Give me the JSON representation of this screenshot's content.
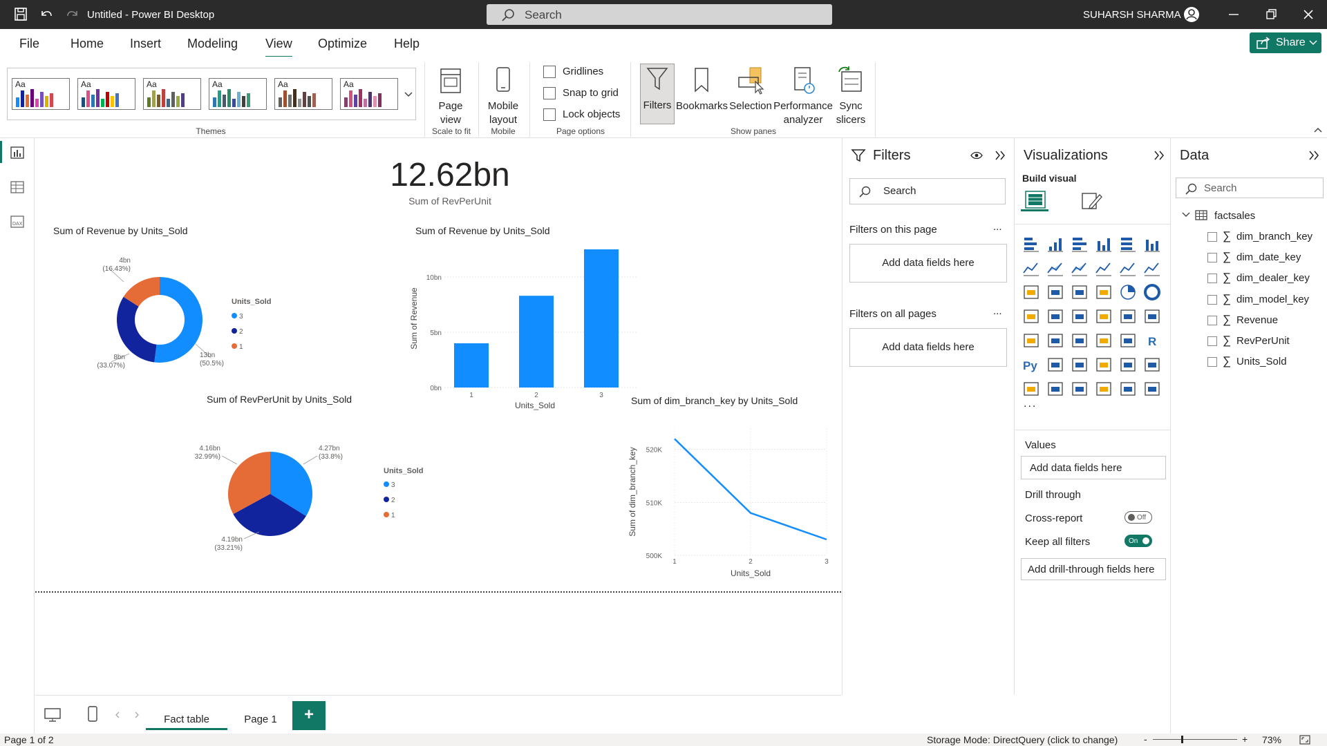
{
  "titlebar": {
    "title": "Untitled - Power BI Desktop",
    "search_placeholder": "Search",
    "user": "SUHARSH SHARMA"
  },
  "menu": {
    "items": [
      "File",
      "Home",
      "Insert",
      "Modeling",
      "View",
      "Optimize",
      "Help"
    ],
    "active": "View",
    "share": "Share"
  },
  "ribbon": {
    "themes_label": "Themes",
    "theme_tile_text": "Aa",
    "page_view": "Page view",
    "scale_label": "Scale to fit",
    "mobile_layout": "Mobile layout",
    "mobile_label": "Mobile",
    "gridlines": "Gridlines",
    "snap": "Snap to grid",
    "lock": "Lock objects",
    "page_options_label": "Page options",
    "filters": "Filters",
    "bookmarks": "Bookmarks",
    "selection": "Selection",
    "performance": "Performance analyzer",
    "sync": "Sync slicers",
    "show_panes_label": "Show panes",
    "theme_colors": [
      [
        "#118dff",
        "#12239e",
        "#e66c37",
        "#6b007b",
        "#e044a7",
        "#744ec2",
        "#d9b300",
        "#d64550"
      ],
      [
        "#1f4e79",
        "#e04e8a",
        "#2e75b6",
        "#7030a0",
        "#00b050",
        "#c00000",
        "#ffc000",
        "#4472c4"
      ],
      [
        "#5b7a2a",
        "#a0a050",
        "#7a5c2a",
        "#c04040",
        "#3a6a8a",
        "#606060",
        "#9aaa40",
        "#504080"
      ],
      [
        "#2e75b6",
        "#1f9e89",
        "#4a5a6a",
        "#2a8a6a",
        "#3a4a9a",
        "#6ab0d0",
        "#404040",
        "#3a9a7a"
      ],
      [
        "#606060",
        "#a05030",
        "#707070",
        "#403020",
        "#909090",
        "#604040",
        "#505050",
        "#a06050"
      ],
      [
        "#804070",
        "#d05080",
        "#6040a0",
        "#a03060",
        "#c070a0",
        "#503070",
        "#e090b0",
        "#803060"
      ]
    ]
  },
  "canvas": {
    "card": {
      "value": "12.62bn",
      "label": "Sum of RevPerUnit"
    },
    "donut": {
      "title": "Sum of Revenue by Units_Sold",
      "legend_title": "Units_Sold",
      "legend": [
        "3",
        "2",
        "1"
      ],
      "labels": [
        {
          "v": "4bn",
          "p": "(16.43%)"
        },
        {
          "v": "13bn",
          "p": "(50.5%)"
        },
        {
          "v": "8bn",
          "p": "(33.07%)"
        }
      ]
    },
    "bar": {
      "title": "Sum of Revenue by Units_Sold",
      "xlabel": "Units_Sold",
      "ylabel": "Sum of Revenue"
    },
    "pie": {
      "title": "Sum of RevPerUnit by Units_Sold",
      "legend_title": "Units_Sold",
      "legend": [
        "3",
        "2",
        "1"
      ],
      "labels": [
        {
          "v": "4.16bn",
          "p": "(32.99%)"
        },
        {
          "v": "4.27bn",
          "p": "(33.8%)"
        },
        {
          "v": "4.19bn",
          "p": "(33.21%)"
        }
      ]
    },
    "line": {
      "title": "Sum of dim_branch_key by Units_Sold",
      "xlabel": "Units_Sold",
      "ylabel": "Sum of dim_branch_key"
    }
  },
  "chart_data": [
    {
      "type": "pie",
      "title": "Sum of Revenue by Units_Sold",
      "donut": true,
      "categories": [
        "3",
        "2",
        "1"
      ],
      "values": [
        13,
        8,
        4
      ],
      "percent": [
        50.5,
        33.07,
        16.43
      ],
      "colors": [
        "#118dff",
        "#12239e",
        "#e66c37"
      ],
      "legend": "right"
    },
    {
      "type": "bar",
      "title": "Sum of Revenue by Units_Sold",
      "categories": [
        "1",
        "2",
        "3"
      ],
      "values": [
        4,
        8.3,
        12.5
      ],
      "ylim": [
        0,
        12.5
      ],
      "yticks": [
        "0bn",
        "5bn",
        "10bn"
      ],
      "xlabel": "Units_Sold",
      "ylabel": "Sum of Revenue",
      "color": "#118dff"
    },
    {
      "type": "pie",
      "title": "Sum of RevPerUnit by Units_Sold",
      "categories": [
        "3",
        "2",
        "1"
      ],
      "values": [
        4.27,
        4.19,
        4.16
      ],
      "percent": [
        33.8,
        33.21,
        32.99
      ],
      "colors": [
        "#118dff",
        "#12239e",
        "#e66c37"
      ],
      "legend": "right"
    },
    {
      "type": "line",
      "title": "Sum of dim_branch_key by Units_Sold",
      "x": [
        "1",
        "2",
        "3"
      ],
      "values": [
        522000,
        508000,
        503000
      ],
      "ylim": [
        500000,
        524000
      ],
      "yticks": [
        "500K",
        "510K",
        "520K"
      ],
      "xlabel": "Units_Sold",
      "ylabel": "Sum of dim_branch_key",
      "color": "#118dff"
    }
  ],
  "pages": {
    "tabs": [
      "Fact table",
      "Page 1"
    ],
    "active": "Fact table",
    "add": "+"
  },
  "status": {
    "page": "Page 1 of 2",
    "storage": "Storage Mode: DirectQuery (click to change)",
    "zoom": "73%",
    "zoom_minus": "-",
    "zoom_plus": "+"
  },
  "filters": {
    "title": "Filters",
    "search": "Search",
    "on_page": "Filters on this page",
    "on_all": "Filters on all pages",
    "add": "Add data fields here",
    "more": "..."
  },
  "viz": {
    "title": "Visualizations",
    "build": "Build visual",
    "values": "Values",
    "values_add": "Add data fields here",
    "drill": "Drill through",
    "cross": "Cross-report",
    "cross_state": "Off",
    "keep": "Keep all filters",
    "keep_state": "On",
    "drill_add": "Add drill-through fields here",
    "py": "Py",
    "r": "R",
    "more": "..."
  },
  "data": {
    "title": "Data",
    "search": "Search",
    "table": "factsales",
    "fields": [
      "dim_branch_key",
      "dim_date_key",
      "dim_dealer_key",
      "dim_model_key",
      "Revenue",
      "RevPerUnit",
      "Units_Sold"
    ],
    "sigma": "∑"
  }
}
